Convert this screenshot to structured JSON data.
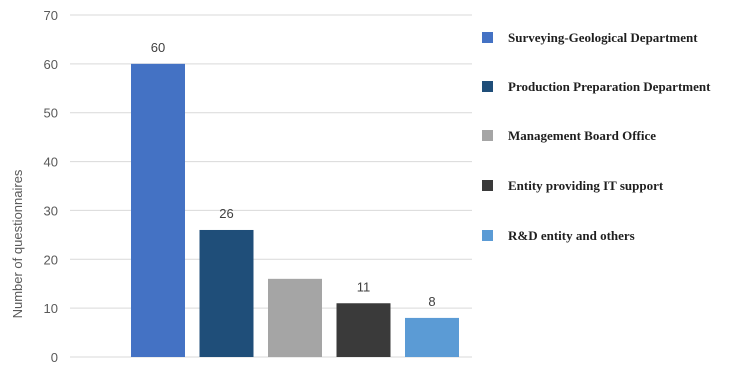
{
  "chart_data": {
    "type": "bar",
    "ylabel": "Number of questionnaires",
    "xlabel": "",
    "ylim": [
      0,
      70
    ],
    "yticks": [
      0,
      10,
      20,
      30,
      40,
      50,
      60,
      70
    ],
    "grid": true,
    "legend_position": "right",
    "categories": [
      "Surveying-Geological Department",
      "Production Preparation Department",
      "Management Board Office",
      "Entity providing IT support",
      "R&D entity and others"
    ],
    "values": [
      60,
      26,
      16,
      11,
      8
    ],
    "data_labels": [
      "60",
      "26",
      "",
      "11",
      "8"
    ],
    "colors": [
      "#4472C4",
      "#1F4E79",
      "#A5A5A5",
      "#3A3A3A",
      "#5B9BD5"
    ]
  }
}
